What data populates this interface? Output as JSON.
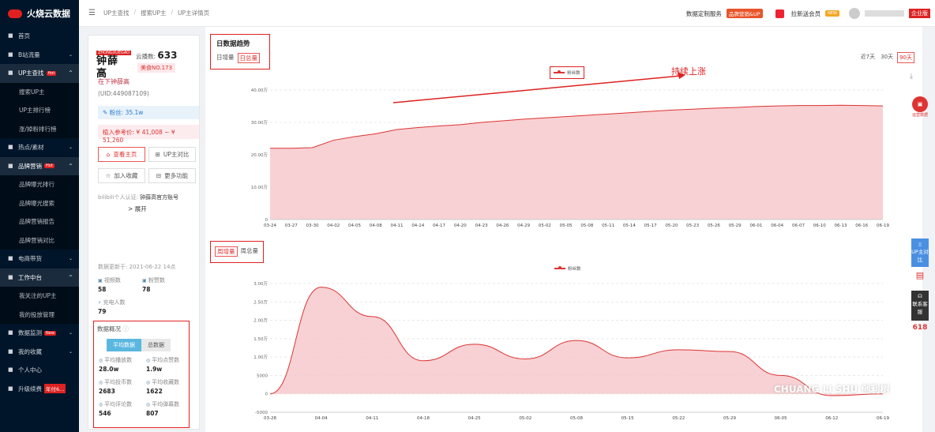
{
  "sidebar": {
    "brand": "火烧云数据",
    "items": [
      {
        "label": "首页",
        "icon": "gear-icon",
        "type": "top"
      },
      {
        "label": "B站流量",
        "icon": "bar-icon",
        "type": "top",
        "caret": "⌄"
      },
      {
        "label": "UP主查找",
        "icon": "search-icon",
        "type": "top",
        "active": true,
        "hot": "Hot",
        "caret": "^"
      },
      {
        "label": "搜索UP主",
        "type": "sub"
      },
      {
        "label": "UP主排行榜",
        "type": "sub"
      },
      {
        "label": "涨/掉粉排行榜",
        "type": "sub"
      },
      {
        "label": "热点/素材",
        "icon": "fire-icon",
        "type": "top",
        "caret": "⌄"
      },
      {
        "label": "品牌营销",
        "icon": "target-icon",
        "type": "top",
        "active": true,
        "hot": "Hot",
        "caret": "^"
      },
      {
        "label": "品牌曝光排行",
        "type": "sub"
      },
      {
        "label": "品牌曝光搜索",
        "type": "sub"
      },
      {
        "label": "品牌营销报告",
        "type": "sub"
      },
      {
        "label": "品牌营销对比",
        "type": "sub"
      },
      {
        "label": "电商带货",
        "icon": "cart-icon",
        "type": "top",
        "caret": "⌄"
      },
      {
        "label": "工作中台",
        "icon": "grid-icon",
        "type": "top",
        "active": true,
        "caret": "^"
      },
      {
        "label": "我关注的UP主",
        "type": "sub"
      },
      {
        "label": "我的投放管理",
        "type": "sub"
      },
      {
        "label": "数据监测",
        "icon": "chart-icon",
        "type": "top",
        "hot": "New",
        "caret": "⌄"
      },
      {
        "label": "我的收藏",
        "icon": "star-icon",
        "type": "top",
        "caret": "⌄"
      },
      {
        "label": "个人中心",
        "icon": "user-icon",
        "type": "top"
      },
      {
        "label": "升级续费",
        "icon": "gear-icon",
        "type": "top",
        "badge": "年付6..."
      }
    ]
  },
  "header": {
    "breadcrumb": [
      "UP主查找",
      "搜索UP主",
      "UP主详情页"
    ],
    "custom_service": "数据定制服务",
    "brand_tag": "品牌营销&UP",
    "invite": "拉新送会员",
    "invite_tag": "NEW",
    "enterprise": "企业版"
  },
  "profile": {
    "logo_text": "钟薛高",
    "logo_small": "ZHONGXUEGAO",
    "index_label": "云播数:",
    "index_value": "633",
    "rank": "美食NO.173",
    "name": "在下钟薛高",
    "uid": "(UID:449087109)",
    "fans": "粉丝: 35.1w",
    "price": "植入参考价: ¥ 41,008 ~ ¥ 51,260",
    "btn_home": "查看主页",
    "btn_compare": "UP主对比",
    "btn_fav": "加入收藏",
    "btn_more": "更多功能",
    "verify_label": "bilibili个人认证:",
    "verify_value": "钟薛高官方账号",
    "expand": "> 展开",
    "update": "数据更新于: 2021-06-22 14点",
    "stats": [
      {
        "label": "视频数",
        "value": "58"
      },
      {
        "label": "粉赞数",
        "value": "78"
      },
      {
        "label": "充电人数",
        "value": "79"
      }
    ]
  },
  "overview": {
    "title": "数据概况",
    "seg": [
      "平均数据",
      "总数据"
    ],
    "items": [
      {
        "label": "平均播放数",
        "value": "28.0w"
      },
      {
        "label": "平均点赞数",
        "value": "1.9w"
      },
      {
        "label": "平均投币数",
        "value": "2683"
      },
      {
        "label": "平均收藏数",
        "value": "1622"
      },
      {
        "label": "平均评论数",
        "value": "546"
      },
      {
        "label": "平均弹幕数",
        "value": "807"
      }
    ]
  },
  "chart1_header": {
    "title": "日数据趋势",
    "tabs": [
      "日增量",
      "日总量"
    ],
    "ranges": [
      "近7天",
      "30天",
      "90天"
    ],
    "annotation": "持续上涨"
  },
  "chart2_header": {
    "tabs": [
      "周增量",
      "周总量"
    ]
  },
  "floating": {
    "compare": "UP主对比",
    "service": "联系客服",
    "number": "618",
    "assistant": "运营数据"
  },
  "watermark": "CHUANG LI SHU 创利树",
  "chart_data": [
    {
      "type": "area",
      "title": "",
      "legend": "粉丝数",
      "legend_position": "top-center",
      "x": [
        "03-24",
        "03-27",
        "03-30",
        "04-02",
        "04-05",
        "04-08",
        "04-11",
        "04-14",
        "04-17",
        "04-20",
        "04-23",
        "04-26",
        "04-29",
        "05-02",
        "05-05",
        "05-08",
        "05-11",
        "05-14",
        "05-17",
        "05-20",
        "05-23",
        "05-26",
        "05-29",
        "06-01",
        "06-04",
        "06-07",
        "06-10",
        "06-13",
        "06-16",
        "06-19"
      ],
      "values": [
        22.0,
        22.0,
        22.2,
        24.5,
        25.6,
        26.5,
        27.8,
        28.4,
        28.9,
        29.3,
        30.0,
        30.5,
        31.0,
        31.4,
        31.8,
        32.2,
        32.6,
        33.0,
        33.4,
        33.8,
        34.1,
        34.4,
        34.6,
        34.9,
        35.1,
        35.2,
        35.2,
        35.3,
        35.2,
        35.1
      ],
      "yticks": [
        "0",
        "10.00万",
        "20.00万",
        "30.00万",
        "40.00万"
      ],
      "ylim": [
        0,
        40
      ]
    },
    {
      "type": "area",
      "title": "",
      "legend": "粉丝数",
      "legend_position": "top-center",
      "x": [
        "03-28",
        "04-04",
        "04-11",
        "04-18",
        "04-25",
        "05-02",
        "05-08",
        "05-15",
        "05-22",
        "05-29",
        "06-05",
        "06-12",
        "06-19"
      ],
      "values": [
        0,
        29000,
        21000,
        9000,
        13500,
        9500,
        14500,
        9800,
        12000,
        11500,
        5000,
        -500,
        0
      ],
      "yticks": [
        "-5000",
        "0",
        "5000",
        "1.00万",
        "1.50万",
        "2.00万",
        "2.50万",
        "3.00万"
      ],
      "ylim": [
        -5000,
        30000
      ]
    }
  ]
}
